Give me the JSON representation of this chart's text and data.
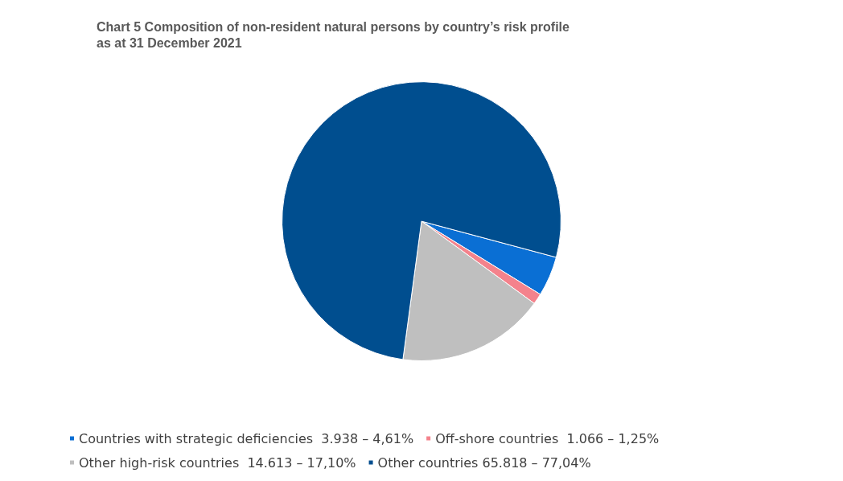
{
  "chart_data": {
    "type": "pie",
    "title": "Chart 5 Composition of non-resident natural persons by country’s risk profile as at 31 December 2021",
    "categories": [
      "Countries with strategic deficiencies  3.938 – 4,61%",
      "Off-shore countries  1.066 – 1,25%",
      "Other high-risk countries  14.613 – 17,10%",
      "Other countries 65.818 – 77,04%"
    ],
    "values": [
      4.61,
      1.25,
      17.1,
      77.04
    ],
    "colors": [
      "#0a6fd4",
      "#f4828c",
      "#bfbfbf",
      "#004e8f"
    ],
    "legend": "bottom"
  }
}
